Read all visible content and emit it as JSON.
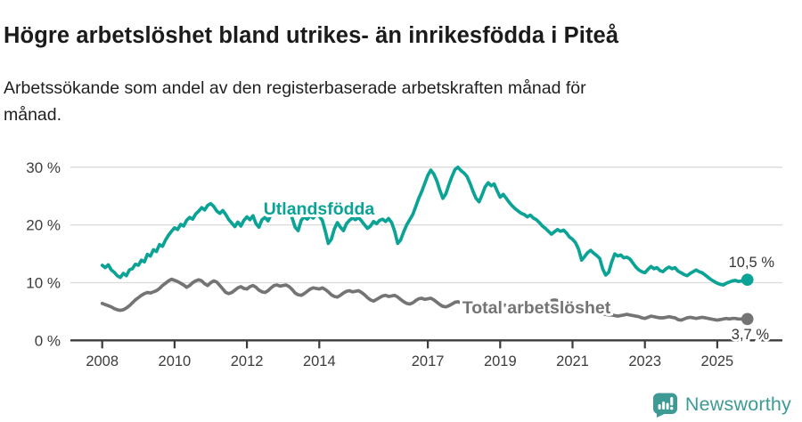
{
  "header": {
    "title": "Högre arbetslöshet bland utrikes- än inrikesfödda i Piteå",
    "subtitle": "Arbetssökande som andel av den registerbaserade arbetskraften månad för månad."
  },
  "footer": {
    "brand": "Newsworthy",
    "brand_color": "#3d9a94"
  },
  "chart_data": {
    "type": "line",
    "title": "Högre arbetslöshet bland utrikes- än inrikesfödda i Piteå",
    "subtitle": "Arbetssökande som andel av den registerbaserade arbetskraften månad för månad.",
    "x_start": 2008.0,
    "x_step_months": 1,
    "xlim": [
      2007.1,
      2026.8
    ],
    "ylim": [
      0,
      32
    ],
    "grid": "horizontal",
    "x_ticks": [
      2008,
      2010,
      2012,
      2014,
      2017,
      2019,
      2021,
      2023,
      2025
    ],
    "x_tick_labels": [
      "2008",
      "2010",
      "2012",
      "2014",
      "2017",
      "2019",
      "2021",
      "2023",
      "2025"
    ],
    "y_ticks": [
      0,
      10,
      20,
      30
    ],
    "y_tick_labels": [
      "0 %",
      "10 %",
      "20 %",
      "30 %"
    ],
    "axis_color": "#3c3c3c",
    "grid_color": "#dadada",
    "series": [
      {
        "name": "Utlandsfödda",
        "color": "#0ba396",
        "end_label": "10,5 %",
        "end_value": 10.5,
        "values": [
          13.0,
          12.6,
          13.1,
          12.2,
          11.8,
          11.2,
          10.9,
          11.6,
          11.2,
          12.2,
          12.4,
          13.2,
          13.0,
          13.9,
          13.6,
          14.9,
          14.6,
          15.7,
          15.4,
          16.6,
          16.3,
          17.4,
          18.2,
          18.9,
          19.5,
          19.2,
          20.1,
          19.8,
          20.8,
          21.3,
          21.0,
          21.9,
          22.4,
          23.0,
          22.6,
          23.4,
          23.7,
          23.2,
          22.4,
          22.0,
          22.5,
          21.8,
          20.9,
          20.3,
          19.7,
          20.5,
          19.8,
          20.8,
          21.4,
          20.9,
          21.6,
          20.2,
          19.6,
          20.9,
          21.3,
          20.7,
          21.8,
          22.3,
          21.9,
          22.5,
          22.2,
          21.8,
          22.4,
          21.2,
          19.6,
          19.0,
          20.8,
          21.4,
          21.0,
          21.6,
          21.2,
          21.8,
          21.5,
          20.8,
          18.9,
          16.8,
          17.5,
          19.3,
          20.4,
          19.6,
          19.0,
          20.2,
          20.8,
          21.2,
          20.9,
          21.3,
          20.7,
          20.0,
          19.4,
          19.8,
          20.6,
          20.2,
          20.8,
          21.0,
          20.6,
          21.1,
          20.4,
          18.9,
          16.8,
          17.4,
          18.8,
          20.0,
          20.9,
          21.8,
          23.2,
          24.6,
          25.8,
          27.2,
          28.6,
          29.5,
          28.8,
          27.6,
          26.0,
          24.6,
          25.4,
          27.0,
          28.4,
          29.6,
          30.0,
          29.4,
          29.0,
          28.4,
          27.2,
          25.8,
          24.6,
          24.0,
          25.2,
          26.6,
          27.3,
          26.8,
          27.1,
          25.9,
          24.8,
          25.3,
          24.6,
          23.9,
          23.3,
          22.8,
          22.4,
          22.0,
          21.8,
          21.4,
          21.7,
          21.2,
          20.9,
          20.4,
          19.8,
          19.4,
          18.9,
          18.4,
          18.8,
          19.2,
          18.9,
          19.1,
          18.6,
          17.9,
          17.5,
          16.9,
          15.8,
          13.9,
          14.5,
          15.2,
          15.6,
          15.1,
          14.7,
          14.2,
          12.4,
          11.3,
          11.8,
          13.6,
          15.0,
          14.6,
          14.8,
          14.3,
          14.4,
          14.1,
          13.4,
          12.7,
          12.2,
          11.9,
          11.7,
          12.3,
          12.8,
          12.4,
          12.6,
          12.1,
          11.9,
          12.4,
          12.7,
          12.4,
          12.6,
          12.0,
          11.7,
          11.4,
          11.2,
          11.6,
          11.9,
          12.2,
          11.9,
          11.7,
          11.3,
          10.9,
          10.5,
          10.2,
          9.9,
          9.7,
          9.6,
          9.9,
          10.1,
          10.3,
          10.4,
          10.2,
          10.3,
          10.4,
          10.5
        ]
      },
      {
        "name": "Total arbetslöshet",
        "color": "#747474",
        "end_label": "3,7 %",
        "end_value": 3.7,
        "values": [
          6.4,
          6.2,
          6.0,
          5.8,
          5.5,
          5.3,
          5.2,
          5.3,
          5.6,
          6.0,
          6.5,
          7.0,
          7.4,
          7.8,
          8.1,
          8.3,
          8.2,
          8.4,
          8.6,
          9.0,
          9.5,
          9.9,
          10.3,
          10.6,
          10.4,
          10.2,
          9.9,
          9.6,
          9.2,
          9.5,
          10.0,
          10.3,
          10.5,
          10.3,
          9.8,
          9.5,
          10.0,
          10.3,
          10.1,
          9.5,
          8.9,
          8.3,
          8.1,
          8.3,
          8.7,
          9.1,
          9.3,
          9.0,
          8.9,
          9.3,
          9.5,
          9.2,
          8.7,
          8.4,
          8.3,
          8.6,
          9.1,
          9.5,
          9.6,
          9.4,
          9.5,
          9.6,
          9.3,
          8.8,
          8.2,
          7.9,
          7.8,
          8.1,
          8.5,
          8.9,
          9.1,
          9.0,
          8.9,
          9.1,
          8.8,
          8.4,
          7.9,
          7.6,
          7.5,
          7.8,
          8.2,
          8.5,
          8.6,
          8.4,
          8.5,
          8.6,
          8.3,
          7.9,
          7.4,
          7.0,
          6.8,
          7.1,
          7.4,
          7.7,
          7.8,
          7.6,
          7.7,
          7.8,
          7.5,
          7.1,
          6.7,
          6.4,
          6.3,
          6.5,
          6.9,
          7.2,
          7.3,
          7.1,
          7.2,
          7.3,
          7.0,
          6.6,
          6.2,
          5.9,
          5.8,
          6.0,
          6.3,
          6.6,
          6.7,
          6.5,
          6.6,
          6.6,
          6.4,
          6.0,
          5.7,
          5.5,
          5.4,
          5.6,
          5.9,
          6.1,
          6.2,
          6.0,
          6.1,
          6.2,
          6.0,
          5.7,
          5.4,
          5.2,
          5.1,
          5.3,
          5.6,
          5.8,
          5.9,
          5.8,
          5.9,
          6.0,
          6.3,
          6.6,
          6.8,
          6.9,
          7.0,
          6.9,
          6.8,
          6.6,
          6.4,
          6.2,
          6.1,
          6.0,
          5.8,
          5.5,
          5.2,
          5.0,
          4.9,
          4.9,
          4.8,
          4.7,
          4.6,
          4.5,
          4.4,
          4.4,
          4.3,
          4.2,
          4.3,
          4.4,
          4.5,
          4.4,
          4.3,
          4.2,
          4.1,
          3.9,
          3.8,
          4.0,
          4.2,
          4.1,
          4.0,
          3.9,
          3.9,
          4.0,
          4.1,
          4.0,
          3.9,
          3.6,
          3.5,
          3.7,
          3.9,
          4.0,
          3.9,
          3.8,
          3.9,
          4.0,
          3.9,
          3.8,
          3.7,
          3.6,
          3.5,
          3.6,
          3.7,
          3.8,
          3.7,
          3.8,
          3.8,
          3.7,
          3.7,
          3.7,
          3.7
        ]
      }
    ]
  }
}
